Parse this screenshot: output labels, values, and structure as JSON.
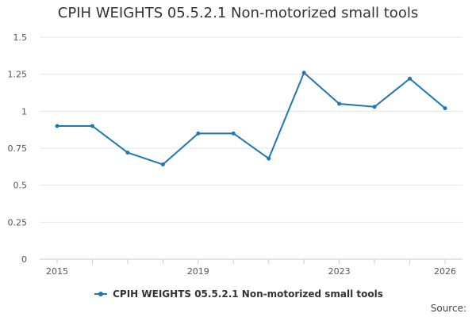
{
  "chart_data": {
    "type": "line",
    "title": "CPIH WEIGHTS 05.5.2.1 Non-motorized small tools",
    "xlabel": "",
    "ylabel": "",
    "x": [
      2015,
      2016,
      2017,
      2018,
      2019,
      2020,
      2021,
      2022,
      2023,
      2024,
      2025,
      2026
    ],
    "x_tick_labels": [
      "2015",
      "2019",
      "2023",
      "2026"
    ],
    "y_tick_labels": [
      "0",
      "0.25",
      "0.5",
      "0.75",
      "1",
      "1.25",
      "1.5"
    ],
    "ylim": [
      0,
      1.5
    ],
    "grid": true,
    "legend_position": "bottom",
    "series": [
      {
        "name": "CPIH WEIGHTS 05.5.2.1 Non-motorized small tools",
        "color": "#1f77b4",
        "values": [
          0.9,
          0.9,
          0.72,
          0.64,
          0.85,
          0.85,
          0.68,
          1.26,
          1.05,
          1.03,
          1.22,
          1.02
        ]
      }
    ]
  },
  "source_label": "Source:"
}
